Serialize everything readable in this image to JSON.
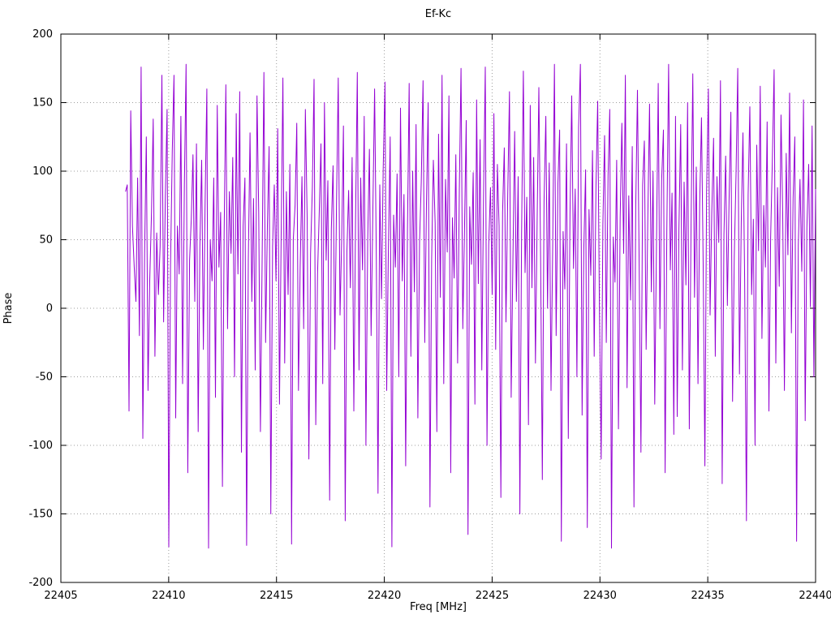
{
  "chart_data": {
    "type": "line",
    "title": "Ef-Kc",
    "xlabel": "Freq [MHz]",
    "ylabel": "Phase",
    "xlim": [
      22405,
      22440
    ],
    "ylim": [
      -200,
      200
    ],
    "x_ticks": [
      22405,
      22410,
      22415,
      22420,
      22425,
      22430,
      22435,
      22440
    ],
    "y_ticks": [
      -200,
      -150,
      -100,
      -50,
      0,
      50,
      100,
      150,
      200
    ],
    "grid": true,
    "legend": "none",
    "line_color": "#9400D3",
    "grid_color": "#9c9c9c",
    "border_color": "#000000",
    "series": [
      {
        "name": "Ef-Kc",
        "x_start": 22408.0,
        "x_end": 22440.0,
        "values": [
          85,
          90,
          -75,
          144,
          60,
          30,
          5,
          95,
          -20,
          176,
          -95,
          40,
          125,
          -60,
          20,
          70,
          138,
          -35,
          55,
          10,
          45,
          170,
          -10,
          80,
          145,
          -174,
          30,
          115,
          170,
          -80,
          60,
          25,
          140,
          -55,
          90,
          178,
          -120,
          35,
          65,
          112,
          5,
          120,
          -90,
          45,
          108,
          -30,
          75,
          160,
          -175,
          50,
          20,
          95,
          -65,
          148,
          30,
          70,
          -130,
          55,
          163,
          -15,
          85,
          40,
          110,
          -50,
          142,
          25,
          158,
          -105,
          60,
          95,
          -173,
          35,
          128,
          5,
          80,
          -45,
          155,
          70,
          -90,
          40,
          172,
          -25,
          60,
          118,
          -150,
          45,
          90,
          20,
          131,
          -70,
          55,
          168,
          -40,
          85,
          10,
          105,
          -172,
          50,
          75,
          135,
          -60,
          30,
          96,
          -15,
          145,
          66,
          -110,
          40,
          88,
          167,
          -85,
          25,
          70,
          120,
          -55,
          150,
          35,
          93,
          -140,
          58,
          104,
          -30,
          78,
          168,
          -5,
          52,
          133,
          -155,
          42,
          86,
          15,
          110,
          -75,
          63,
          172,
          -45,
          95,
          28,
          140,
          -100,
          50,
          116,
          -20,
          73,
          160,
          38,
          -135,
          90,
          7,
          102,
          165,
          -60,
          44,
          125,
          -174,
          68,
          30,
          98,
          -50,
          146,
          20,
          83,
          -115,
          57,
          164,
          -35,
          100,
          12,
          134,
          -80,
          48,
          92,
          166,
          -25,
          76,
          150,
          -145,
          36,
          108,
          62,
          -90,
          127,
          8,
          170,
          -55,
          94,
          41,
          155,
          -120,
          66,
          22,
          112,
          -40,
          86,
          175,
          -15,
          58,
          137,
          -165,
          74,
          32,
          99,
          -70,
          152,
          18,
          123,
          -45,
          80,
          176,
          -100,
          46,
          88,
          10,
          142,
          -30,
          105,
          60,
          -138,
          70,
          117,
          -10,
          84,
          158,
          -65,
          38,
          129,
          5,
          96,
          -150,
          54,
          173,
          26,
          81,
          -85,
          148,
          15,
          110,
          -40,
          64,
          161,
          35,
          -125,
          78,
          140,
          0,
          106,
          -60,
          47,
          178,
          -20,
          91,
          130,
          -170,
          56,
          14,
          120,
          -95,
          69,
          155,
          29,
          87,
          -50,
          132,
          178,
          -78,
          43,
          101,
          -160,
          72,
          24,
          115,
          -35,
          89,
          151,
          3,
          -110,
          61,
          126,
          -25,
          97,
          145,
          -175,
          52,
          19,
          108,
          -88,
          66,
          135,
          40,
          170,
          -58,
          82,
          6,
          118,
          -145,
          74,
          159,
          33,
          -105,
          90,
          122,
          -30,
          67,
          149,
          12,
          100,
          -70,
          44,
          164,
          -15,
          93,
          130,
          -120,
          57,
          178,
          28,
          84,
          -92,
          140,
          -79,
          58,
          134,
          -45,
          92,
          17,
          150,
          -88,
          63,
          171,
          8,
          103,
          -55,
          76,
          139,
          31,
          -115,
          85,
          160,
          -5,
          70,
          124,
          -35,
          96,
          48,
          166,
          -128,
          54,
          111,
          2,
          79,
          143,
          -68,
          37,
          98,
          175,
          -48,
          62,
          128,
          21,
          -155,
          83,
          147,
          10,
          65,
          -100,
          119,
          42,
          162,
          -22,
          75,
          30,
          136,
          -75,
          51,
          107,
          174,
          -40,
          88,
          16,
          141,
          68,
          -60,
          113,
          39,
          157,
          -18,
          80,
          125,
          -170,
          46,
          94,
          27,
          152,
          -82,
          59,
          105,
          1,
          133,
          -50,
          87
        ]
      }
    ]
  }
}
